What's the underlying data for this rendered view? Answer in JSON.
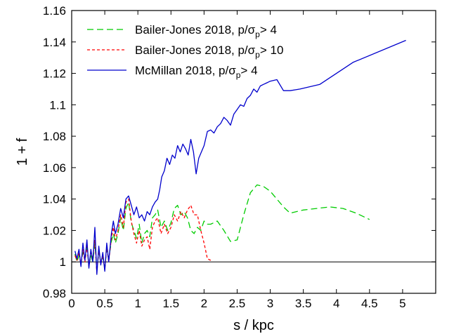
{
  "chart_data": {
    "type": "line",
    "title": "",
    "xlabel": "s / kpc",
    "ylabel": "1 + f",
    "xlim": [
      0,
      5.5
    ],
    "ylim": [
      0.98,
      1.16
    ],
    "xticks": [
      "0",
      "0.5",
      "1",
      "1.5",
      "2",
      "2.5",
      "3",
      "3.5",
      "4",
      "4.5",
      "5"
    ],
    "yticks": [
      "0.98",
      "1",
      "1.02",
      "1.04",
      "1.06",
      "1.08",
      "1.1",
      "1.12",
      "1.14",
      "1.16"
    ],
    "grid": false,
    "legend_position": "top-left",
    "reference_line": {
      "y": 1.0,
      "x_range": [
        0,
        5.5
      ],
      "color": "#000000"
    },
    "series": [
      {
        "name_main": "Bailer-Jones 2018, p/σ",
        "name_sub": "p",
        "name_tail": "> 4",
        "color": "#00cc00",
        "style": "long-dash",
        "x": [
          0.05,
          0.08,
          0.11,
          0.14,
          0.17,
          0.2,
          0.23,
          0.26,
          0.29,
          0.32,
          0.35,
          0.38,
          0.41,
          0.44,
          0.47,
          0.5,
          0.53,
          0.56,
          0.6,
          0.63,
          0.66,
          0.7,
          0.74,
          0.78,
          0.82,
          0.86,
          0.9,
          0.94,
          0.98,
          1.02,
          1.06,
          1.1,
          1.14,
          1.18,
          1.22,
          1.26,
          1.3,
          1.35,
          1.4,
          1.45,
          1.5,
          1.55,
          1.6,
          1.65,
          1.7,
          1.75,
          1.8,
          1.85,
          1.9,
          1.95,
          2.0,
          2.05,
          2.1,
          2.15,
          2.2,
          2.3,
          2.4,
          2.5,
          2.6,
          2.7,
          2.8,
          2.9,
          3.0,
          3.1,
          3.2,
          3.3,
          3.5,
          3.7,
          3.9,
          4.1,
          4.3,
          4.5
        ],
        "y": [
          1.005,
          1.0,
          1.004,
          0.999,
          1.006,
          1.002,
          1.009,
          0.998,
          1.004,
          1.0,
          1.012,
          0.995,
          1.006,
          1.001,
          1.003,
          0.996,
          1.008,
          1.002,
          1.013,
          1.018,
          1.012,
          1.018,
          1.028,
          1.02,
          1.034,
          1.038,
          1.025,
          1.02,
          1.015,
          1.024,
          1.012,
          1.018,
          1.02,
          1.016,
          1.028,
          1.03,
          1.033,
          1.022,
          1.026,
          1.02,
          1.025,
          1.034,
          1.036,
          1.03,
          1.032,
          1.028,
          1.02,
          1.018,
          1.022,
          1.02,
          1.026,
          1.024,
          1.024,
          1.025,
          1.026,
          1.02,
          1.013,
          1.014,
          1.03,
          1.044,
          1.049,
          1.048,
          1.045,
          1.04,
          1.035,
          1.031,
          1.033,
          1.034,
          1.035,
          1.034,
          1.031,
          1.027
        ]
      },
      {
        "name_main": "Bailer-Jones 2018, p/σ",
        "name_sub": "p",
        "name_tail": "> 10",
        "color": "#ff0000",
        "style": "short-dash",
        "x": [
          0.05,
          0.08,
          0.11,
          0.14,
          0.17,
          0.2,
          0.23,
          0.26,
          0.29,
          0.32,
          0.35,
          0.38,
          0.41,
          0.44,
          0.47,
          0.5,
          0.53,
          0.56,
          0.6,
          0.63,
          0.66,
          0.7,
          0.74,
          0.78,
          0.82,
          0.86,
          0.9,
          0.94,
          0.98,
          1.02,
          1.06,
          1.1,
          1.14,
          1.18,
          1.22,
          1.26,
          1.3,
          1.35,
          1.4,
          1.45,
          1.5,
          1.55,
          1.6,
          1.65,
          1.7,
          1.75,
          1.8,
          1.85,
          1.9,
          1.95,
          2.0,
          2.05,
          2.1
        ],
        "y": [
          1.004,
          1.001,
          1.006,
          0.998,
          1.008,
          1.0,
          1.01,
          0.997,
          1.006,
          1.002,
          1.014,
          0.993,
          1.008,
          0.999,
          1.004,
          0.995,
          1.01,
          1.0,
          1.015,
          1.022,
          1.014,
          1.02,
          1.03,
          1.022,
          1.038,
          1.04,
          1.026,
          1.018,
          1.012,
          1.02,
          1.01,
          1.014,
          1.016,
          1.008,
          1.022,
          1.026,
          1.028,
          1.018,
          1.024,
          1.018,
          1.022,
          1.03,
          1.026,
          1.032,
          1.028,
          1.033,
          1.036,
          1.03,
          1.03,
          1.02,
          1.012,
          1.002,
          1.001
        ]
      },
      {
        "name_main": "McMillan 2018, p/σ",
        "name_sub": "p",
        "name_tail": "> 4",
        "color": "#0000cc",
        "style": "solid",
        "x": [
          0.05,
          0.08,
          0.11,
          0.14,
          0.17,
          0.2,
          0.23,
          0.26,
          0.29,
          0.32,
          0.35,
          0.38,
          0.41,
          0.44,
          0.47,
          0.5,
          0.53,
          0.56,
          0.6,
          0.63,
          0.66,
          0.7,
          0.74,
          0.78,
          0.82,
          0.86,
          0.9,
          0.94,
          0.98,
          1.02,
          1.06,
          1.1,
          1.14,
          1.18,
          1.22,
          1.26,
          1.3,
          1.33,
          1.36,
          1.4,
          1.44,
          1.48,
          1.52,
          1.56,
          1.6,
          1.64,
          1.68,
          1.72,
          1.76,
          1.8,
          1.84,
          1.88,
          1.92,
          1.96,
          2.0,
          2.05,
          2.1,
          2.15,
          2.2,
          2.25,
          2.3,
          2.35,
          2.4,
          2.45,
          2.5,
          2.55,
          2.6,
          2.65,
          2.7,
          2.75,
          2.8,
          2.85,
          2.9,
          2.95,
          3.0,
          3.1,
          3.2,
          3.3,
          3.45,
          3.75,
          4.25,
          5.05
        ],
        "y": [
          1.007,
          1.002,
          1.008,
          0.997,
          1.012,
          1.001,
          1.014,
          0.996,
          1.008,
          1.0,
          1.022,
          0.992,
          1.01,
          0.998,
          1.006,
          0.994,
          1.012,
          1.0,
          1.018,
          1.026,
          1.018,
          1.024,
          1.034,
          1.028,
          1.04,
          1.042,
          1.036,
          1.03,
          1.035,
          1.028,
          1.03,
          1.026,
          1.032,
          1.03,
          1.035,
          1.038,
          1.04,
          1.046,
          1.054,
          1.058,
          1.066,
          1.062,
          1.068,
          1.066,
          1.074,
          1.07,
          1.075,
          1.072,
          1.068,
          1.078,
          1.07,
          1.056,
          1.066,
          1.07,
          1.074,
          1.083,
          1.084,
          1.082,
          1.086,
          1.088,
          1.092,
          1.09,
          1.087,
          1.094,
          1.097,
          1.1,
          1.099,
          1.104,
          1.106,
          1.11,
          1.108,
          1.112,
          1.113,
          1.114,
          1.115,
          1.116,
          1.109,
          1.109,
          1.11,
          1.113,
          1.127,
          1.141
        ]
      }
    ]
  }
}
